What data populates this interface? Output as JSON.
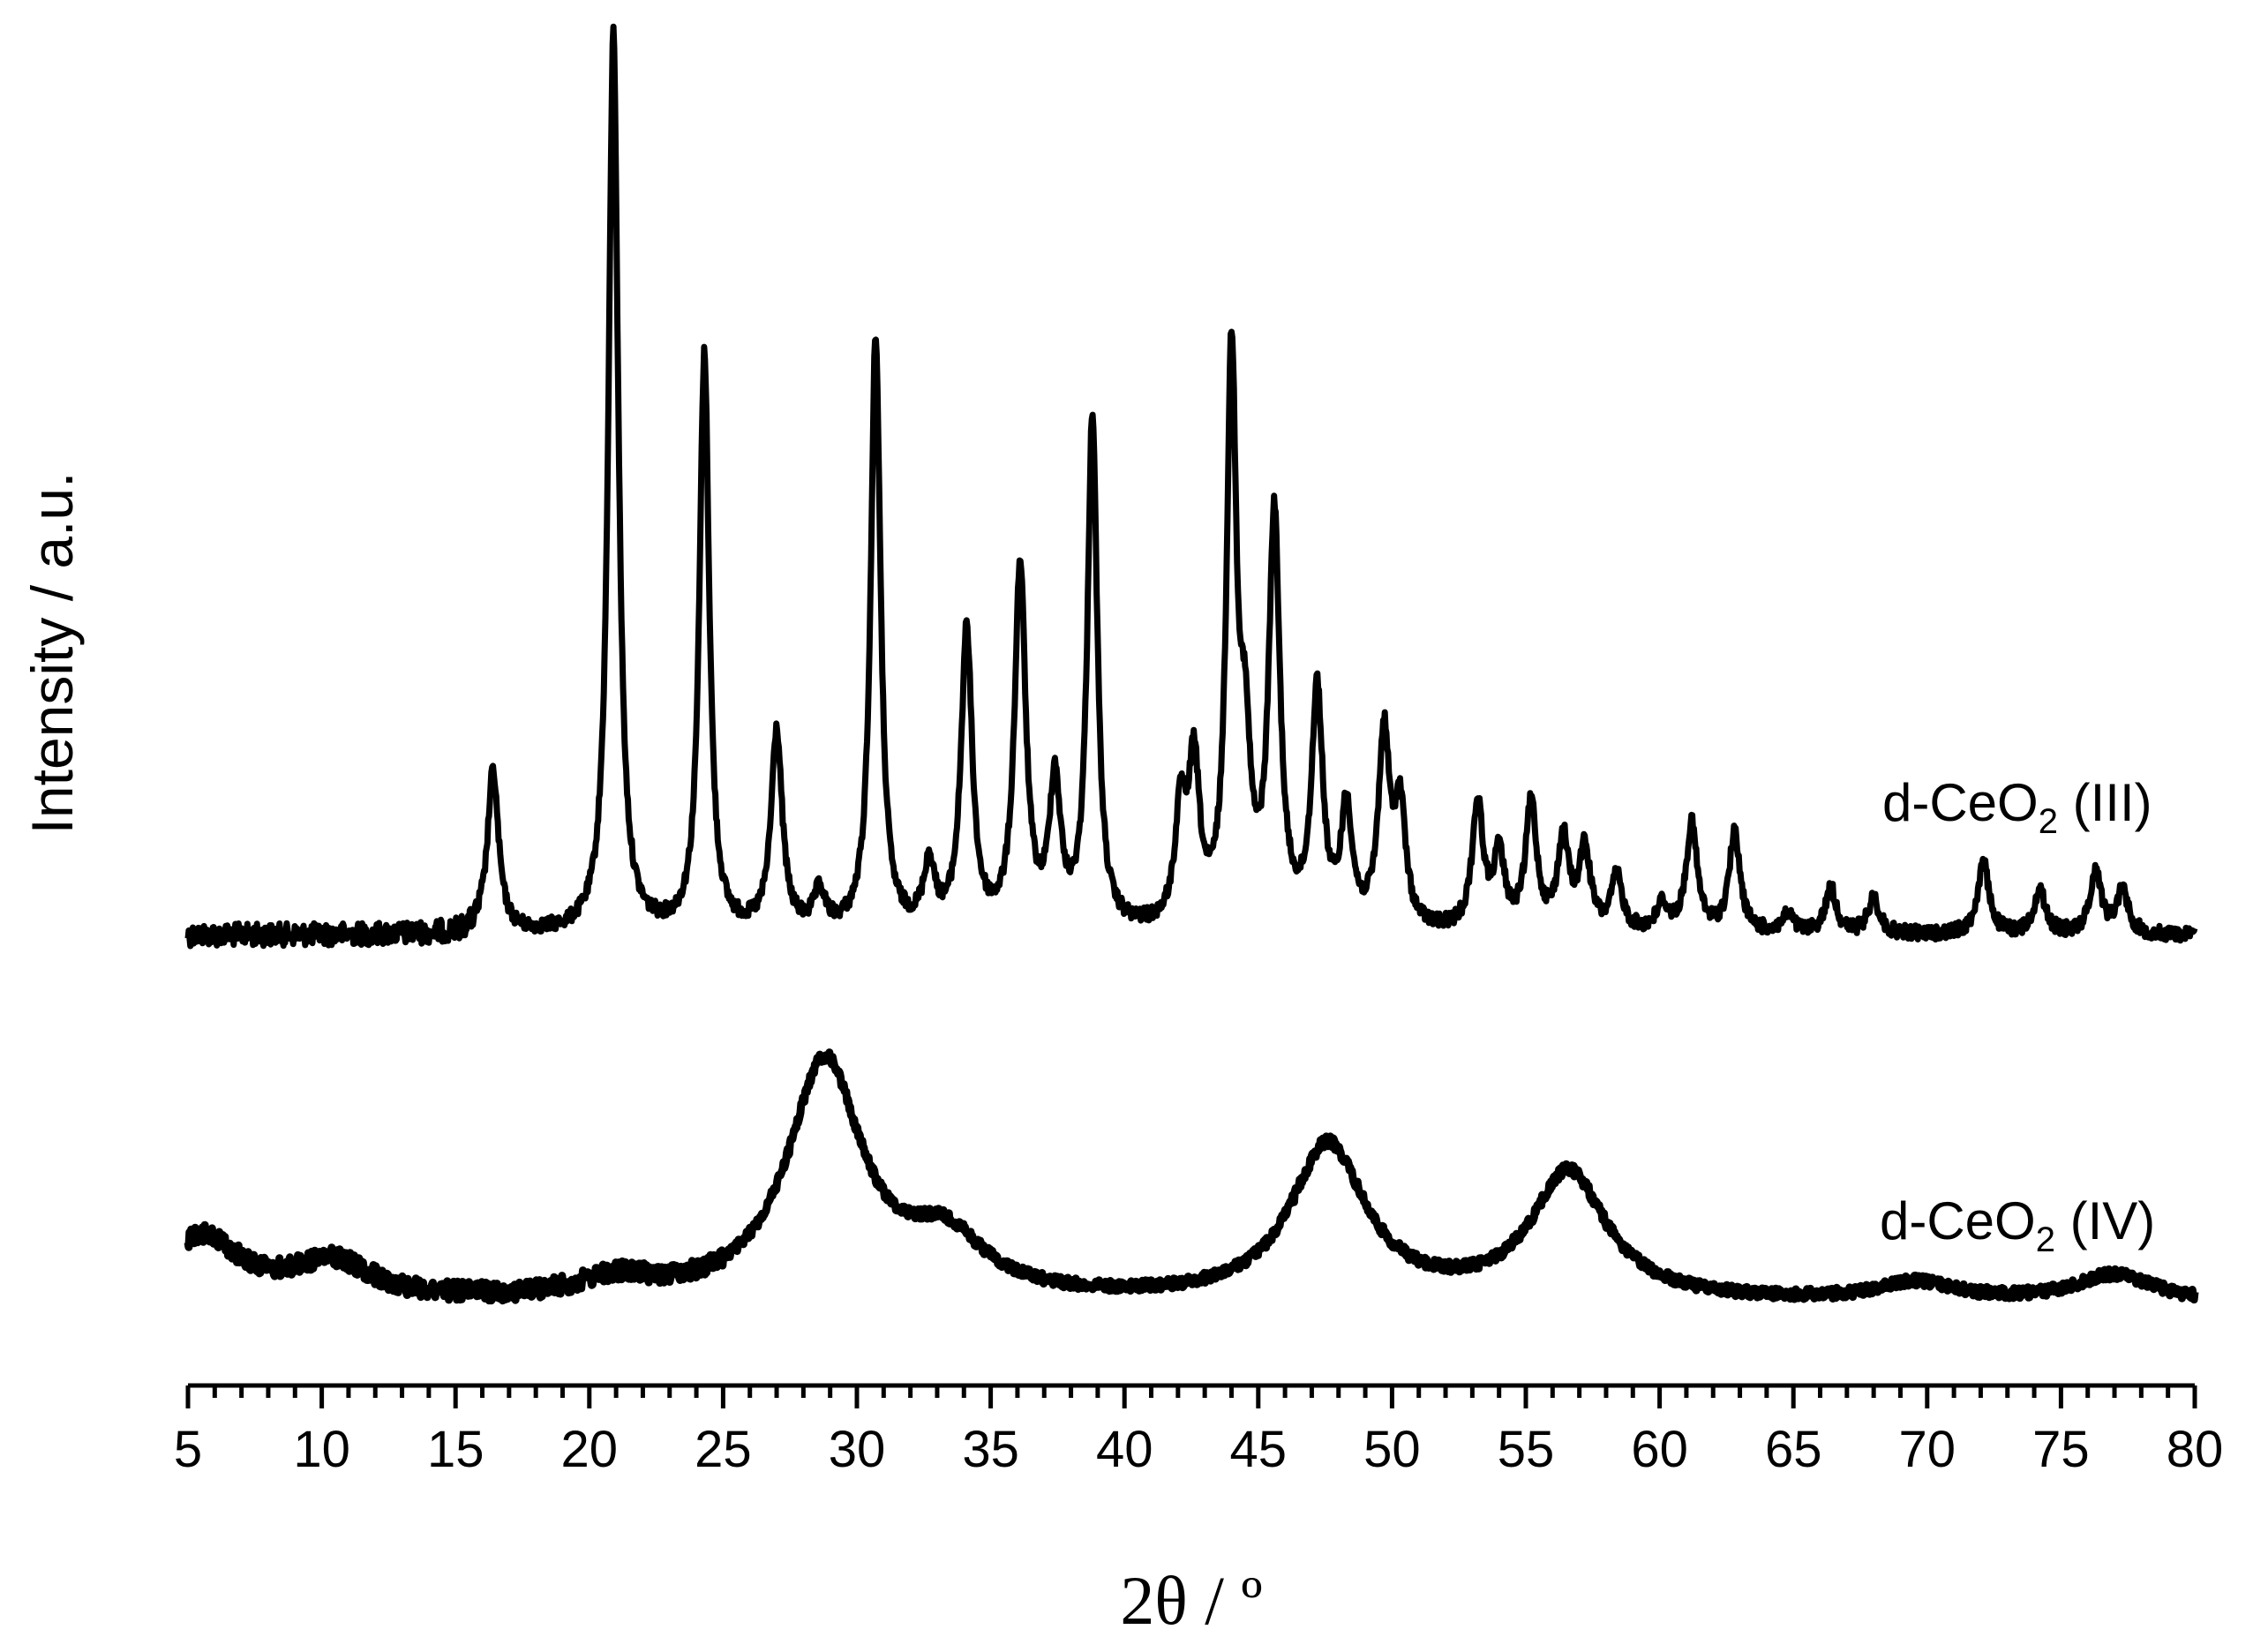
{
  "chart_data": {
    "type": "line",
    "xlabel": "2θ / º",
    "ylabel": "Intensity / a.u.",
    "xlim": [
      5,
      80
    ],
    "xticks": [
      5,
      10,
      15,
      20,
      25,
      30,
      35,
      40,
      45,
      50,
      55,
      60,
      65,
      70,
      75,
      80
    ],
    "xtick_labels": [
      "5",
      "10",
      "15",
      "20",
      "25",
      "30",
      "35",
      "40",
      "45",
      "50",
      "55",
      "60",
      "65",
      "70",
      "75",
      "80"
    ],
    "yticks_shown": false,
    "grid": false,
    "stacked_offset": true,
    "series": [
      {
        "name": "d-CeO2 (III)",
        "label_main": "d-CeO",
        "label_sub": "2",
        "label_suffix": " (III)",
        "peaks": [
          {
            "x": 16.4,
            "y": 0.18
          },
          {
            "x": 20.9,
            "y": 1.0
          },
          {
            "x": 24.3,
            "y": 0.64
          },
          {
            "x": 27.0,
            "y": 0.22
          },
          {
            "x": 28.6,
            "y": 0.04
          },
          {
            "x": 30.7,
            "y": 0.66
          },
          {
            "x": 32.7,
            "y": 0.07
          },
          {
            "x": 34.1,
            "y": 0.33
          },
          {
            "x": 36.1,
            "y": 0.4
          },
          {
            "x": 37.4,
            "y": 0.16
          },
          {
            "x": 38.8,
            "y": 0.57
          },
          {
            "x": 42.1,
            "y": 0.12
          },
          {
            "x": 42.6,
            "y": 0.17
          },
          {
            "x": 44.0,
            "y": 0.62
          },
          {
            "x": 44.5,
            "y": 0.17
          },
          {
            "x": 45.6,
            "y": 0.45
          },
          {
            "x": 47.2,
            "y": 0.26
          },
          {
            "x": 48.3,
            "y": 0.13
          },
          {
            "x": 49.7,
            "y": 0.21
          },
          {
            "x": 50.3,
            "y": 0.13
          },
          {
            "x": 53.2,
            "y": 0.14
          },
          {
            "x": 54.0,
            "y": 0.08
          },
          {
            "x": 55.2,
            "y": 0.14
          },
          {
            "x": 56.4,
            "y": 0.1
          },
          {
            "x": 57.2,
            "y": 0.09
          },
          {
            "x": 58.4,
            "y": 0.06
          },
          {
            "x": 60.1,
            "y": 0.03
          },
          {
            "x": 61.2,
            "y": 0.12
          },
          {
            "x": 62.8,
            "y": 0.11
          },
          {
            "x": 64.8,
            "y": 0.02
          },
          {
            "x": 66.4,
            "y": 0.05
          },
          {
            "x": 68.0,
            "y": 0.04
          },
          {
            "x": 72.1,
            "y": 0.08
          },
          {
            "x": 74.2,
            "y": 0.05
          },
          {
            "x": 76.3,
            "y": 0.07
          },
          {
            "x": 77.3,
            "y": 0.05
          }
        ]
      },
      {
        "name": "d-CeO2 (IV)",
        "label_main": "d-CeO",
        "label_sub": "2",
        "label_suffix": " (IV)",
        "peaks": [
          {
            "x": 5.5,
            "y": 0.07
          },
          {
            "x": 10.4,
            "y": 0.04
          },
          {
            "x": 21.0,
            "y": 0.02
          },
          {
            "x": 28.8,
            "y": 0.26
          },
          {
            "x": 33.3,
            "y": 0.06
          },
          {
            "x": 47.6,
            "y": 0.17
          },
          {
            "x": 56.6,
            "y": 0.14
          },
          {
            "x": 69.6,
            "y": 0.02
          },
          {
            "x": 77.0,
            "y": 0.03
          }
        ]
      }
    ]
  }
}
